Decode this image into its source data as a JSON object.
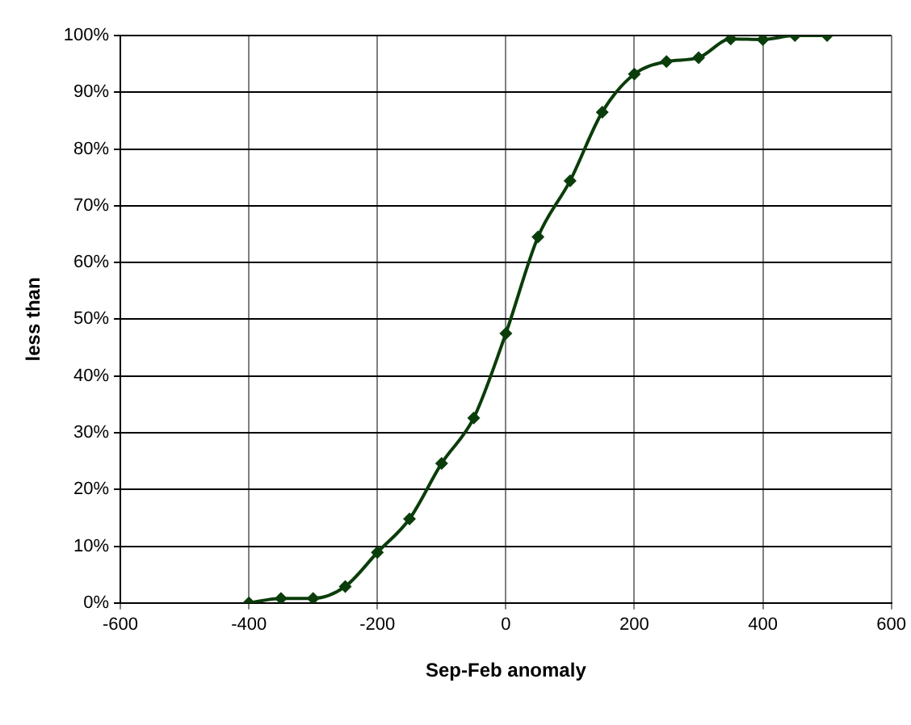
{
  "chart_data": {
    "type": "line",
    "xlabel": "Sep-Feb anomaly",
    "ylabel": "less than",
    "x": [
      -400,
      -350,
      -300,
      -250,
      -200,
      -150,
      -100,
      -50,
      0,
      50,
      100,
      150,
      200,
      250,
      300,
      350,
      400,
      450,
      500
    ],
    "series": [
      {
        "color": "#0b3d0b",
        "values": [
          0,
          0.8,
          0.8,
          2.9,
          8.9,
          14.8,
          24.6,
          32.6,
          47.5,
          64.5,
          74.4,
          86.5,
          93.2,
          95.4,
          96.1,
          99.4,
          99.3,
          100,
          100
        ]
      }
    ],
    "xlim": [
      -600,
      600
    ],
    "xticks": [
      -600,
      -400,
      -200,
      0,
      200,
      400,
      600
    ],
    "ylim": [
      0,
      100
    ],
    "yticks": [
      {
        "value": 0,
        "label": "0%"
      },
      {
        "value": 10,
        "label": "10%"
      },
      {
        "value": 20,
        "label": "20%"
      },
      {
        "value": 30,
        "label": "30%"
      },
      {
        "value": 40,
        "label": "40%"
      },
      {
        "value": 50,
        "label": "50%"
      },
      {
        "value": 60,
        "label": "60%"
      },
      {
        "value": 70,
        "label": "70%"
      },
      {
        "value": 80,
        "label": "80%"
      },
      {
        "value": 90,
        "label": "90%"
      },
      {
        "value": 100,
        "label": "100%"
      }
    ],
    "grid": true,
    "legend": false,
    "marker": "diamond",
    "line_style": "solid"
  }
}
